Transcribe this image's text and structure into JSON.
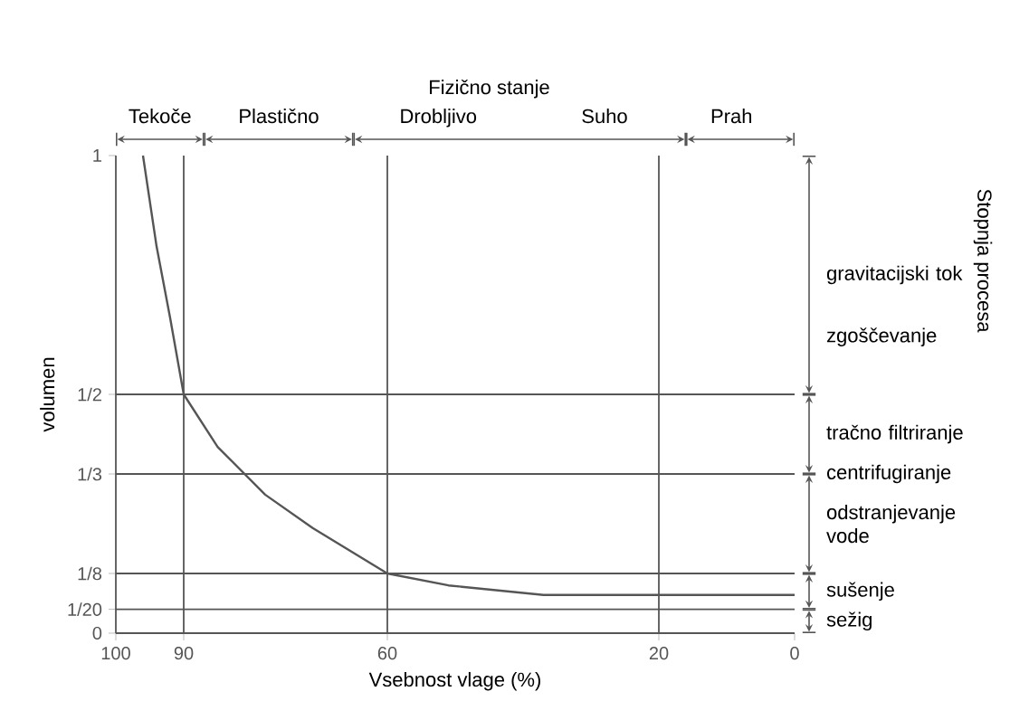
{
  "chart_data": {
    "type": "line",
    "title": "Fizično stanje",
    "xlabel": "Vsebnost vlage (%)",
    "ylabel": "volumen",
    "x": [
      96,
      94,
      92,
      90,
      85,
      78,
      71,
      60,
      51,
      37,
      20,
      0
    ],
    "series": [
      {
        "color": "#555555",
        "values": [
          1,
          0.81,
          0.66,
          0.5,
          0.39,
          0.29,
          0.22,
          0.125,
          0.1,
          0.08,
          0.08,
          0.08
        ]
      }
    ],
    "xlim": [
      100,
      0
    ],
    "xticks": [
      100,
      90,
      60,
      20,
      0
    ],
    "ylim": [
      0,
      1
    ],
    "yticks": [
      0,
      {
        "value": 0.05,
        "label": "1/20"
      },
      {
        "value": 0.125,
        "label": "1/8"
      },
      {
        "value": 0.3333,
        "label": "1/3"
      },
      {
        "value": 0.5,
        "label": "1/2"
      },
      1
    ],
    "line_style": "solid",
    "ref_lines": [
      {
        "axis": "x",
        "value": 90,
        "color": "#555555"
      },
      {
        "axis": "x",
        "value": 60,
        "color": "#555555"
      },
      {
        "axis": "x",
        "value": 20,
        "color": "#555555"
      },
      {
        "axis": "y",
        "value": 0.5,
        "color": "#555555"
      },
      {
        "axis": "y",
        "value": 0.3333,
        "color": "#555555"
      },
      {
        "axis": "y",
        "value": 0.125,
        "color": "#555555"
      },
      {
        "axis": "y",
        "value": 0.05,
        "color": "#555555"
      }
    ],
    "annotations": [
      "Stopnja procesa",
      "Tekoče",
      "Plastično",
      "Drobljivo",
      "Suho",
      "Prah",
      "gravitacijski tok",
      "zgoščevanje",
      "tračno filtriranje",
      "centrifugiranje",
      "odstranjevanje vode",
      "sušenje",
      "sežig"
    ]
  }
}
